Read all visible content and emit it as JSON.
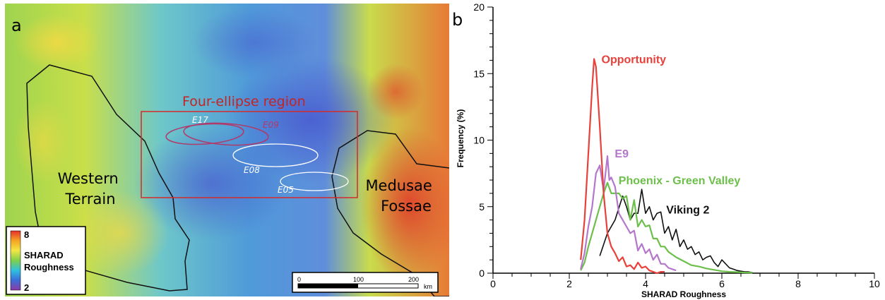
{
  "panel_a": {
    "letter": "a",
    "region_title": "Four-ellipse region",
    "ellipses": [
      "E17",
      "E09",
      "E08",
      "E05"
    ],
    "terrain_labels": [
      "Western",
      "Terrain",
      "Medusae",
      "Fossae"
    ],
    "colorbar": {
      "max": "8",
      "min": "2",
      "title_line1": "SHARAD",
      "title_line2": "Roughness",
      "colors": [
        "#e5312a",
        "#f5a623",
        "#f3e545",
        "#7fd04a",
        "#2fbfe0",
        "#3b6fd8",
        "#8b3aa8"
      ]
    },
    "scalebar": {
      "tick0": "0",
      "tick1": "100",
      "tick2": "200",
      "unit": "km"
    },
    "colors": {
      "region_box": "#d42a2a",
      "ellipse_e17_e09": "#b03a6a",
      "ellipse_e08_e05": "#ffffff",
      "boundary": "#111111"
    }
  },
  "chart_data": {
    "type": "line",
    "panel_letter": "b",
    "title": "",
    "xlabel": "SHARAD Roughness",
    "ylabel": "Frequency (%)",
    "xlim": [
      0,
      10
    ],
    "ylim": [
      0,
      20
    ],
    "x_ticks": [
      "0",
      "2",
      "4",
      "6",
      "8",
      "10"
    ],
    "y_ticks": [
      "0",
      "5",
      "10",
      "15",
      "20"
    ],
    "grid": false,
    "legend": "inline labels",
    "series": [
      {
        "name": "Opportunity",
        "color": "#e8403a",
        "x": [
          2.3,
          2.4,
          2.5,
          2.6,
          2.65,
          2.7,
          2.8,
          2.9,
          3.0,
          3.1,
          3.2,
          3.3,
          3.4,
          3.5,
          3.6,
          3.7,
          3.8,
          3.9,
          4.0,
          4.1,
          4.2,
          4.3,
          4.4,
          4.5
        ],
        "y": [
          1.0,
          4.0,
          9.0,
          14.0,
          16.1,
          15.5,
          11.0,
          6.0,
          3.0,
          2.0,
          1.5,
          0.9,
          1.2,
          0.5,
          0.6,
          0.3,
          0.8,
          0.4,
          0.5,
          0.2,
          0.1,
          0.0,
          0.1,
          0.1
        ],
        "label_x": 2.75,
        "label_y": 15.9
      },
      {
        "name": "E9",
        "color": "#b477cc",
        "x": [
          2.3,
          2.4,
          2.5,
          2.6,
          2.7,
          2.8,
          2.9,
          3.0,
          3.05,
          3.1,
          3.2,
          3.3,
          3.4,
          3.5,
          3.6,
          3.7,
          3.8,
          3.9,
          4.0,
          4.1,
          4.2,
          4.3,
          4.4,
          4.5,
          4.6,
          4.7,
          4.8
        ],
        "y": [
          0.3,
          1.5,
          3.5,
          5.0,
          7.5,
          8.1,
          6.2,
          8.8,
          7.0,
          7.2,
          6.5,
          4.5,
          4.0,
          3.5,
          3.0,
          3.2,
          1.7,
          2.2,
          1.5,
          1.8,
          1.0,
          1.4,
          0.7,
          0.7,
          0.4,
          0.3,
          0.2
        ],
        "label_x": 3.1,
        "label_y": 8.8
      },
      {
        "name": "Phoenix - Green Valley",
        "color": "#6dbf4b",
        "x": [
          2.3,
          2.4,
          2.5,
          2.6,
          2.7,
          2.8,
          2.9,
          3.0,
          3.1,
          3.2,
          3.3,
          3.4,
          3.5,
          3.6,
          3.7,
          3.8,
          3.9,
          4.0,
          4.1,
          4.2,
          4.3,
          4.4,
          4.5,
          4.6,
          4.8,
          5.0,
          5.2,
          5.4,
          5.6,
          5.8,
          6.0,
          6.2,
          6.4,
          6.6,
          6.8
        ],
        "y": [
          0.2,
          0.8,
          2.0,
          3.0,
          4.0,
          5.0,
          6.0,
          6.8,
          6.0,
          6.0,
          6.0,
          5.6,
          5.8,
          4.0,
          5.5,
          3.5,
          4.0,
          3.5,
          3.6,
          2.6,
          2.6,
          2.0,
          2.0,
          1.6,
          1.2,
          0.9,
          0.6,
          0.5,
          0.35,
          0.25,
          0.15,
          0.1,
          0.08,
          0.05,
          0.03
        ],
        "label_x": 3.2,
        "label_y": 6.8
      },
      {
        "name": "Viking 2",
        "color": "#111111",
        "x": [
          2.8,
          3.0,
          3.2,
          3.4,
          3.5,
          3.6,
          3.7,
          3.8,
          3.9,
          4.0,
          4.1,
          4.2,
          4.3,
          4.4,
          4.5,
          4.6,
          4.7,
          4.8,
          4.9,
          5.0,
          5.1,
          5.2,
          5.3,
          5.4,
          5.5,
          5.6,
          5.7,
          5.8,
          5.9,
          6.0,
          6.1,
          6.2,
          6.3,
          6.4,
          6.5,
          6.6,
          6.7,
          6.8
        ],
        "y": [
          1.3,
          3.0,
          4.0,
          5.8,
          5.0,
          4.0,
          4.5,
          4.5,
          6.3,
          4.5,
          5.0,
          4.0,
          4.5,
          4.6,
          3.0,
          3.5,
          2.5,
          3.3,
          2.0,
          2.5,
          1.8,
          2.0,
          1.4,
          1.6,
          1.0,
          1.2,
          1.3,
          0.8,
          0.5,
          1.0,
          0.7,
          0.4,
          0.3,
          0.2,
          0.15,
          0.1,
          0.1,
          0.05
        ],
        "label_x": 4.45,
        "label_y": 4.6
      }
    ]
  }
}
